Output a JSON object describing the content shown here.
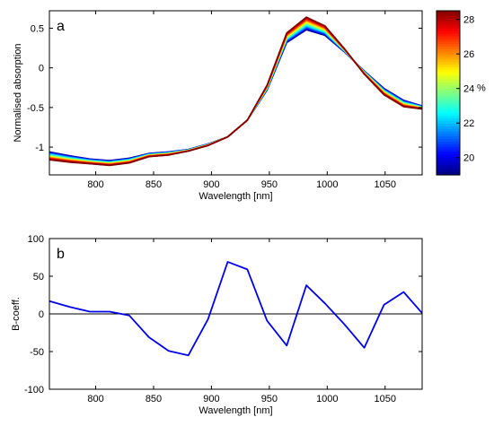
{
  "chart_data": [
    {
      "type": "line",
      "panel_label": "a",
      "xlabel": "Wavelength [nm]",
      "ylabel": "Normalised absorption",
      "xlim": [
        760,
        1082
      ],
      "ylim": [
        -1.35,
        0.72
      ],
      "xticks": [
        800,
        850,
        900,
        950,
        1000,
        1050
      ],
      "yticks": [
        -1,
        -0.5,
        0,
        0.5
      ],
      "ytick_labels": [
        "-1",
        "-0.5",
        "0",
        "0.5"
      ],
      "x": [
        760,
        778,
        795,
        812,
        829,
        846,
        863,
        880,
        897,
        914,
        931,
        948,
        965,
        982,
        998,
        1015,
        1032,
        1049,
        1066,
        1082
      ],
      "series_base": [
        -1.11,
        -1.15,
        -1.18,
        -1.2,
        -1.17,
        -1.1,
        -1.08,
        -1.04,
        -0.97,
        -0.87,
        -0.66,
        -0.25,
        0.38,
        0.56,
        0.47,
        0.22,
        -0.06,
        -0.3,
        -0.45,
        -0.5
      ],
      "series_delta": [
        -0.05,
        -0.04,
        -0.03,
        -0.03,
        -0.03,
        -0.02,
        -0.02,
        -0.01,
        -0.01,
        0.0,
        0.0,
        0.03,
        0.06,
        0.08,
        0.06,
        0.02,
        -0.02,
        -0.04,
        -0.04,
        -0.02
      ],
      "colorbar": {
        "label": "%",
        "range": [
          19,
          28.5
        ],
        "ticks": [
          20,
          22,
          24,
          26,
          28
        ],
        "colormap": "jet"
      }
    },
    {
      "type": "line",
      "panel_label": "b",
      "xlabel": "Wavelength [nm]",
      "ylabel": "B-coeff.",
      "xlim": [
        760,
        1082
      ],
      "ylim": [
        -100,
        100
      ],
      "xticks": [
        800,
        850,
        900,
        950,
        1000,
        1050
      ],
      "yticks": [
        -100,
        -50,
        0,
        50,
        100
      ],
      "x": [
        760,
        778,
        795,
        812,
        829,
        846,
        863,
        880,
        897,
        914,
        931,
        948,
        965,
        982,
        998,
        1015,
        1032,
        1049,
        1066,
        1082
      ],
      "values": [
        17,
        9,
        3,
        3,
        -2,
        -31,
        -49,
        -55,
        -7,
        69,
        59,
        -9,
        -42,
        38,
        14,
        -14,
        -45,
        12,
        29,
        1
      ],
      "color": "#0000ee",
      "zero_line": true
    }
  ]
}
